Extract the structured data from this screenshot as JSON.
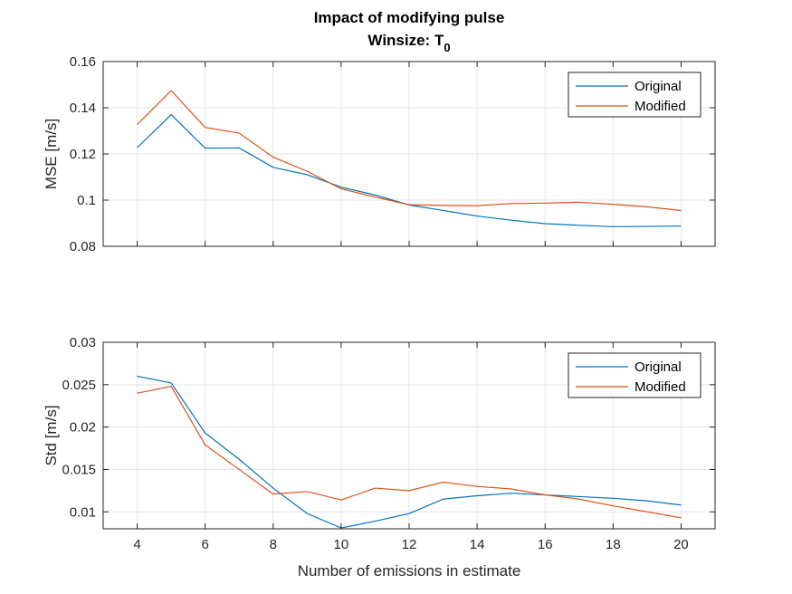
{
  "title": {
    "line1": "Impact of modifying pulse",
    "line2_prefix": "Winsize: T",
    "line2_subscript": "0"
  },
  "chart_data": [
    {
      "type": "line",
      "xlabel": "",
      "ylabel": "MSE [m/s]",
      "xlim": [
        3,
        21
      ],
      "ylim": [
        0.08,
        0.16
      ],
      "xticks": [
        4,
        6,
        8,
        10,
        12,
        14,
        16,
        18,
        20
      ],
      "yticks": [
        0.08,
        0.1,
        0.12,
        0.14,
        0.16
      ],
      "ytick_labels": [
        "0.08",
        "0.1",
        "0.12",
        "0.14",
        "0.16"
      ],
      "show_xtick_labels": false,
      "grid": true,
      "legend": "top-right",
      "x": [
        4,
        5,
        6,
        7,
        8,
        9,
        10,
        11,
        12,
        13,
        14,
        15,
        16,
        17,
        18,
        19,
        20
      ],
      "series": [
        {
          "name": "Original",
          "color": "#0072BD",
          "values": [
            0.1227,
            0.137,
            0.1225,
            0.1226,
            0.1142,
            0.111,
            0.1056,
            0.1022,
            0.0979,
            0.0955,
            0.0931,
            0.0913,
            0.0898,
            0.0891,
            0.0885,
            0.0886,
            0.0888
          ]
        },
        {
          "name": "Modified",
          "color": "#D95319",
          "values": [
            0.1327,
            0.1474,
            0.1315,
            0.129,
            0.1186,
            0.1125,
            0.1049,
            0.1013,
            0.098,
            0.0977,
            0.0976,
            0.0985,
            0.0987,
            0.0991,
            0.0982,
            0.0971,
            0.0955
          ]
        }
      ]
    },
    {
      "type": "line",
      "xlabel": "Number of emissions in estimate",
      "ylabel": "Std [m/s]",
      "xlim": [
        3,
        21
      ],
      "ylim": [
        0.008,
        0.03
      ],
      "xticks": [
        4,
        6,
        8,
        10,
        12,
        14,
        16,
        18,
        20
      ],
      "yticks": [
        0.01,
        0.015,
        0.02,
        0.025,
        0.03
      ],
      "ytick_labels": [
        "0.01",
        "0.015",
        "0.02",
        "0.025",
        "0.03"
      ],
      "show_xtick_labels": true,
      "grid": true,
      "legend": "top-right",
      "x": [
        4,
        5,
        6,
        7,
        8,
        9,
        10,
        11,
        12,
        13,
        14,
        15,
        16,
        17,
        18,
        19,
        20
      ],
      "series": [
        {
          "name": "Original",
          "color": "#0072BD",
          "values": [
            0.026,
            0.0252,
            0.0193,
            0.0162,
            0.0128,
            0.0098,
            0.0081,
            0.0089,
            0.0098,
            0.0115,
            0.0119,
            0.0122,
            0.012,
            0.0118,
            0.0116,
            0.0113,
            0.0108
          ]
        },
        {
          "name": "Modified",
          "color": "#D95319",
          "values": [
            0.024,
            0.0248,
            0.0179,
            0.015,
            0.0121,
            0.0124,
            0.0114,
            0.0128,
            0.0125,
            0.0135,
            0.013,
            0.0127,
            0.012,
            0.0115,
            0.0107,
            0.01,
            0.0093
          ]
        }
      ]
    }
  ]
}
